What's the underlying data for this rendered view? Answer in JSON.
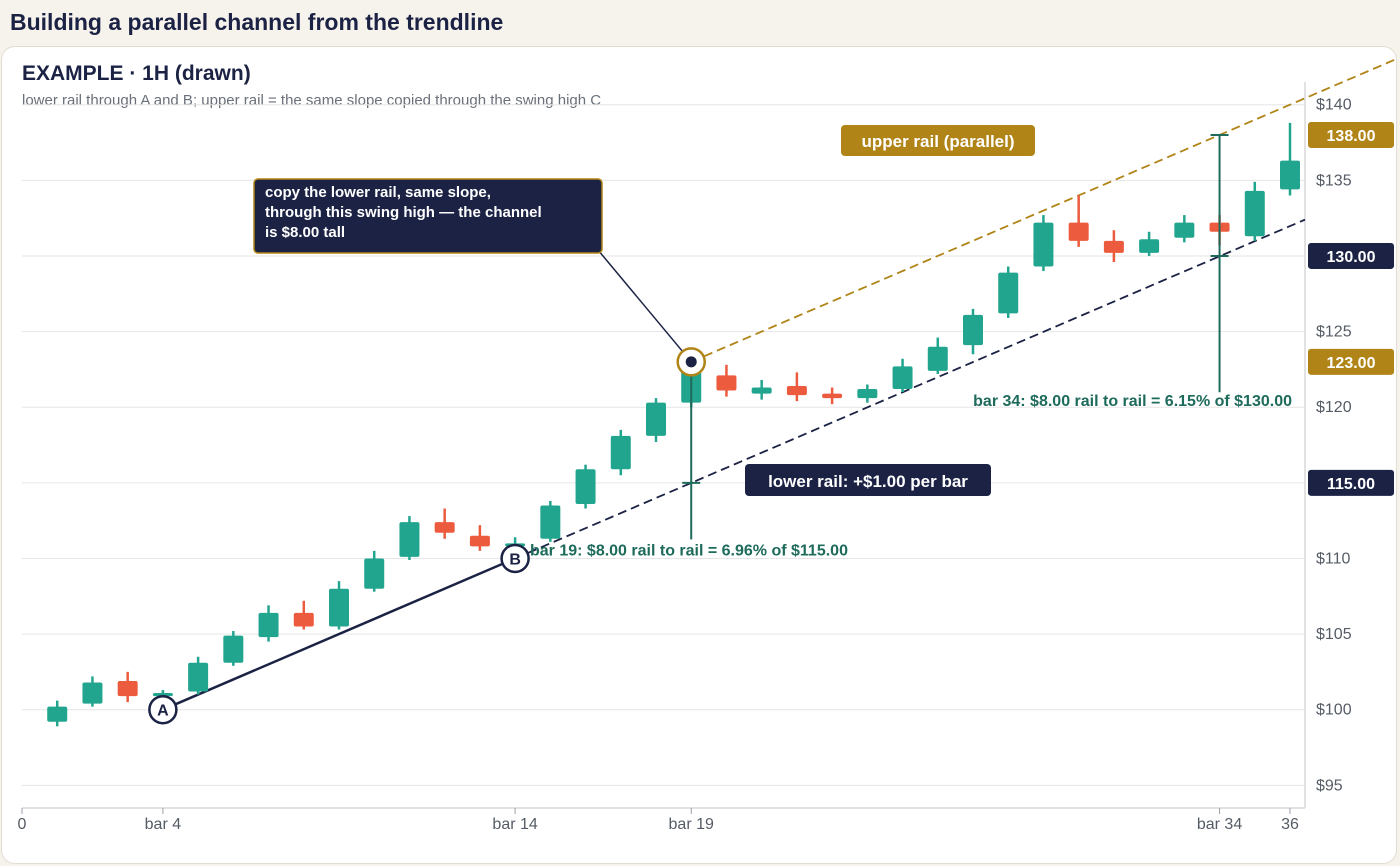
{
  "page": {
    "title": "Building a parallel channel from the trendline",
    "chart_title": "EXAMPLE · 1H (drawn)",
    "chart_subtitle": "lower rail through A and B; upper rail = the same slope copied through the swing high C"
  },
  "colors": {
    "up": "#22a58e",
    "down": "#ec5b3d",
    "navy": "#1b2244",
    "gold": "#b08416",
    "measure": "#1e6b5c",
    "grid": "#e6e6e6",
    "axis_text": "#555c66"
  },
  "chart_data": {
    "type": "candlestick",
    "x_range": [
      0,
      36
    ],
    "y_range": [
      93.5,
      141.5
    ],
    "y_ticks": [
      95,
      100,
      105,
      110,
      115,
      120,
      125,
      130,
      135,
      140
    ],
    "y_tick_labels": [
      "$95",
      "$100",
      "$105",
      "$110",
      "$115",
      "$120",
      "$125",
      "$130",
      "$135",
      "$140"
    ],
    "x_ticks": [
      {
        "x": 0,
        "label": "0"
      },
      {
        "x": 4,
        "label": "bar 4"
      },
      {
        "x": 14,
        "label": "bar 14"
      },
      {
        "x": 19,
        "label": "bar 19"
      },
      {
        "x": 34,
        "label": "bar 34"
      },
      {
        "x": 36,
        "label": "36"
      }
    ],
    "candles": [
      {
        "bar": 1,
        "o": 99.2,
        "h": 100.6,
        "l": 98.9,
        "c": 100.2
      },
      {
        "bar": 2,
        "o": 100.4,
        "h": 102.2,
        "l": 100.2,
        "c": 101.8
      },
      {
        "bar": 3,
        "o": 101.9,
        "h": 102.5,
        "l": 100.5,
        "c": 100.9
      },
      {
        "bar": 4,
        "o": 100.9,
        "h": 101.3,
        "l": 100.5,
        "c": 101.1
      },
      {
        "bar": 5,
        "o": 101.2,
        "h": 103.5,
        "l": 101.0,
        "c": 103.1
      },
      {
        "bar": 6,
        "o": 103.1,
        "h": 105.2,
        "l": 102.9,
        "c": 104.9
      },
      {
        "bar": 7,
        "o": 104.8,
        "h": 106.9,
        "l": 104.5,
        "c": 106.4
      },
      {
        "bar": 8,
        "o": 106.4,
        "h": 107.2,
        "l": 105.3,
        "c": 105.5
      },
      {
        "bar": 9,
        "o": 105.5,
        "h": 108.5,
        "l": 105.3,
        "c": 108.0
      },
      {
        "bar": 10,
        "o": 108.0,
        "h": 110.5,
        "l": 107.8,
        "c": 110.0
      },
      {
        "bar": 11,
        "o": 110.1,
        "h": 112.8,
        "l": 109.9,
        "c": 112.4
      },
      {
        "bar": 12,
        "o": 112.4,
        "h": 113.3,
        "l": 111.3,
        "c": 111.7
      },
      {
        "bar": 13,
        "o": 111.5,
        "h": 112.2,
        "l": 110.5,
        "c": 110.8
      },
      {
        "bar": 14,
        "o": 110.8,
        "h": 111.4,
        "l": 110.2,
        "c": 111.0
      },
      {
        "bar": 15,
        "o": 111.3,
        "h": 113.8,
        "l": 111.1,
        "c": 113.5
      },
      {
        "bar": 16,
        "o": 113.6,
        "h": 116.2,
        "l": 113.3,
        "c": 115.9
      },
      {
        "bar": 17,
        "o": 115.9,
        "h": 118.5,
        "l": 115.5,
        "c": 118.1
      },
      {
        "bar": 18,
        "o": 118.1,
        "h": 120.6,
        "l": 117.7,
        "c": 120.3
      },
      {
        "bar": 19,
        "o": 120.3,
        "h": 123.0,
        "l": 120.0,
        "c": 122.6
      },
      {
        "bar": 20,
        "o": 122.1,
        "h": 122.8,
        "l": 120.7,
        "c": 121.1
      },
      {
        "bar": 21,
        "o": 120.9,
        "h": 121.8,
        "l": 120.5,
        "c": 121.3
      },
      {
        "bar": 22,
        "o": 121.4,
        "h": 122.3,
        "l": 120.4,
        "c": 120.8
      },
      {
        "bar": 23,
        "o": 120.9,
        "h": 121.3,
        "l": 120.2,
        "c": 120.6
      },
      {
        "bar": 24,
        "o": 120.6,
        "h": 121.5,
        "l": 120.3,
        "c": 121.2
      },
      {
        "bar": 25,
        "o": 121.2,
        "h": 123.2,
        "l": 121.0,
        "c": 122.7
      },
      {
        "bar": 26,
        "o": 122.4,
        "h": 124.6,
        "l": 122.2,
        "c": 124.0
      },
      {
        "bar": 27,
        "o": 124.1,
        "h": 126.5,
        "l": 123.5,
        "c": 126.1
      },
      {
        "bar": 28,
        "o": 126.2,
        "h": 129.3,
        "l": 125.9,
        "c": 128.9
      },
      {
        "bar": 29,
        "o": 129.3,
        "h": 132.7,
        "l": 129.0,
        "c": 132.2
      },
      {
        "bar": 30,
        "o": 132.2,
        "h": 134.0,
        "l": 130.6,
        "c": 131.0
      },
      {
        "bar": 31,
        "o": 131.0,
        "h": 131.7,
        "l": 129.6,
        "c": 130.2
      },
      {
        "bar": 32,
        "o": 130.2,
        "h": 131.6,
        "l": 130.0,
        "c": 131.1
      },
      {
        "bar": 33,
        "o": 131.2,
        "h": 132.7,
        "l": 130.9,
        "c": 132.2
      },
      {
        "bar": 34,
        "o": 132.2,
        "h": 132.7,
        "l": 130.7,
        "c": 131.6
      },
      {
        "bar": 35,
        "o": 131.3,
        "h": 134.9,
        "l": 131.0,
        "c": 134.3
      },
      {
        "bar": 36,
        "o": 134.4,
        "h": 138.8,
        "l": 134.0,
        "c": 136.3
      }
    ],
    "lower_rail": {
      "x0": 4,
      "y0": 100,
      "slope": 1,
      "label": "lower rail: +$1.00 per bar"
    },
    "upper_rail": {
      "x0": 19,
      "y0": 123,
      "slope": 1,
      "label": "upper rail (parallel)"
    },
    "points": [
      {
        "label": "A",
        "x": 4,
        "y": 100
      },
      {
        "label": "B",
        "x": 14,
        "y": 110
      }
    ],
    "swing_high": {
      "x": 19,
      "y": 123
    },
    "callout": "copy the lower rail, same slope, through this swing high — the channel is $8.00 tall",
    "measures": [
      {
        "x": 19,
        "low": 115,
        "high": 123,
        "text": "bar 19: $8.00 rail to rail = 6.96% of $115.00"
      },
      {
        "x": 34,
        "low": 130,
        "high": 138,
        "text": "bar 34: $8.00 rail to rail = 6.15% of $130.00"
      }
    ],
    "price_tags": [
      {
        "value": 138,
        "label": "138.00",
        "style": "gold"
      },
      {
        "value": 130,
        "label": "130.00",
        "style": "navy"
      },
      {
        "value": 123,
        "label": "123.00",
        "style": "gold"
      },
      {
        "value": 115,
        "label": "115.00",
        "style": "navy"
      }
    ]
  }
}
